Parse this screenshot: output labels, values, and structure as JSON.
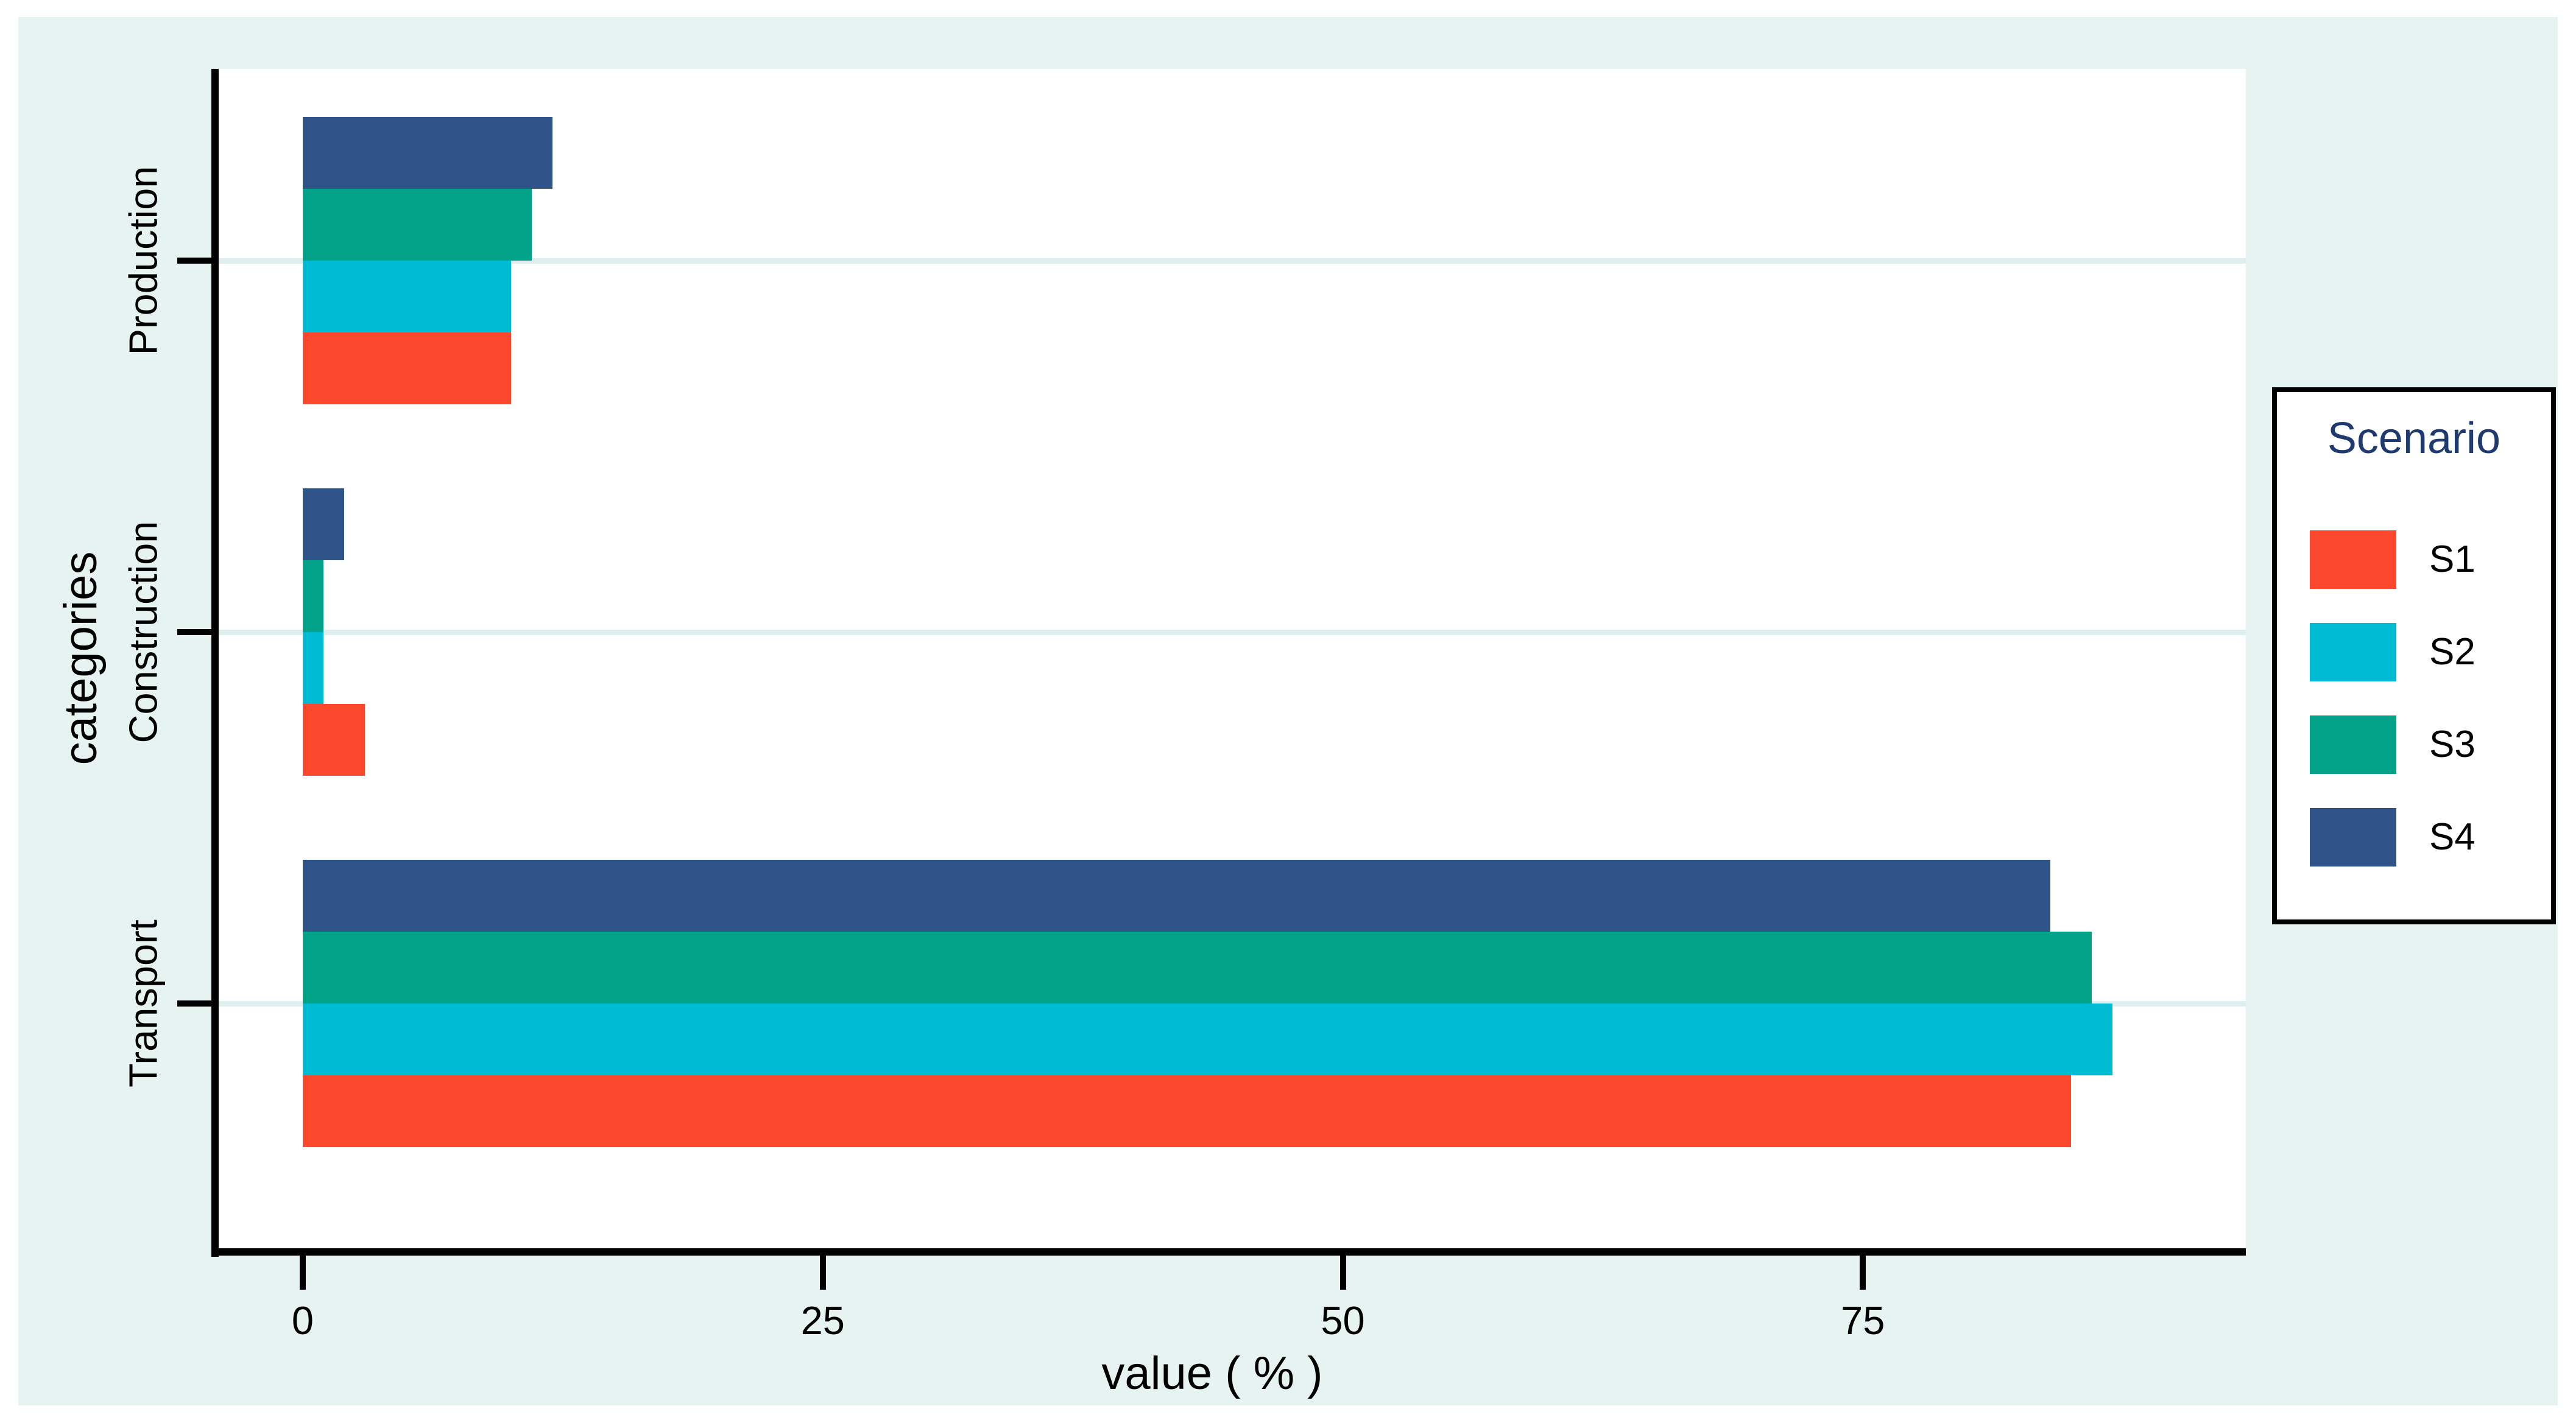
{
  "style": {
    "page_background": "#ffffff",
    "panel_background": "#e7f3f1",
    "plot_background": "#ffffff",
    "gridline_color": "#dfeeef",
    "axis_color": "#000000",
    "legend_title_color": "#1e3a6e"
  },
  "chart_data": {
    "type": "bar",
    "orientation": "horizontal",
    "title": "",
    "xlabel": "value ( % )",
    "ylabel": "categories",
    "categories": [
      "Production",
      "Construction",
      "Transport"
    ],
    "series": [
      {
        "name": "S1",
        "color": "#fb472b",
        "values": [
          10,
          3,
          85
        ]
      },
      {
        "name": "S2",
        "color": "#00bcd2",
        "values": [
          10,
          1,
          87
        ]
      },
      {
        "name": "S3",
        "color": "#02a388",
        "values": [
          11,
          1,
          86
        ]
      },
      {
        "name": "S4",
        "color": "#2e5389",
        "values": [
          12,
          2,
          84
        ]
      }
    ],
    "x_ticks": [
      0,
      25,
      50,
      75
    ],
    "xlim": [
      0,
      93.4
    ],
    "grid": "horizontal gridlines at category ticks only",
    "legend": {
      "title": "Scenario",
      "position": "right",
      "entries": [
        "S1",
        "S2",
        "S3",
        "S4"
      ]
    }
  }
}
